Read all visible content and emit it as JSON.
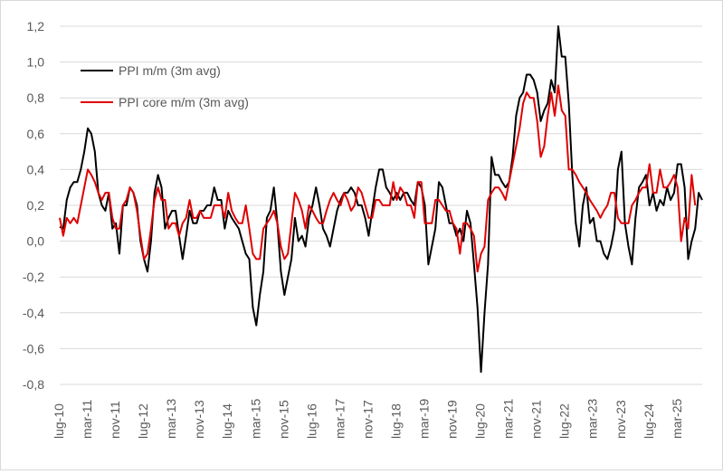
{
  "chart_data": {
    "type": "line",
    "ylim": [
      -0.8,
      1.2
    ],
    "yticks": [
      "-0,8",
      "-0,6",
      "-0,4",
      "-0,2",
      "0,0",
      "0,2",
      "0,4",
      "0,6",
      "0,8",
      "1,0",
      "1,2"
    ],
    "xticks": [
      "lug-10",
      "mar-11",
      "nov-11",
      "lug-12",
      "mar-13",
      "nov-13",
      "lug-14",
      "mar-15",
      "nov-15",
      "lug-16",
      "mar-17",
      "nov-17",
      "lug-18",
      "mar-19",
      "nov-19",
      "lug-20",
      "mar-21",
      "nov-21",
      "lug-22",
      "mar-23",
      "nov-23",
      "lug-24",
      "mar-25"
    ],
    "grid": "horizontal",
    "legend": "top-left",
    "series": [
      {
        "name": "PPI m/m (3m avg)",
        "color": "#000000",
        "values": [
          0.08,
          0.07,
          0.23,
          0.3,
          0.33,
          0.33,
          0.4,
          0.5,
          0.63,
          0.6,
          0.5,
          0.27,
          0.2,
          0.17,
          0.27,
          0.07,
          0.1,
          -0.07,
          0.2,
          0.2,
          0.3,
          0.27,
          0.2,
          0.0,
          -0.1,
          -0.17,
          0.0,
          0.27,
          0.37,
          0.3,
          0.07,
          0.13,
          0.17,
          0.17,
          0.03,
          -0.1,
          0.03,
          0.17,
          0.1,
          0.1,
          0.17,
          0.17,
          0.2,
          0.2,
          0.3,
          0.23,
          0.23,
          0.07,
          0.17,
          0.13,
          0.1,
          0.07,
          0.0,
          -0.07,
          -0.1,
          -0.37,
          -0.47,
          -0.3,
          -0.17,
          0.13,
          0.17,
          0.3,
          0.1,
          -0.17,
          -0.3,
          -0.2,
          -0.1,
          0.13,
          0.0,
          0.03,
          -0.03,
          0.13,
          0.2,
          0.3,
          0.2,
          0.07,
          0.03,
          -0.03,
          0.07,
          0.17,
          0.23,
          0.27,
          0.27,
          0.3,
          0.27,
          0.2,
          0.2,
          0.13,
          0.03,
          0.17,
          0.3,
          0.4,
          0.4,
          0.3,
          0.27,
          0.23,
          0.27,
          0.23,
          0.27,
          0.27,
          0.23,
          0.2,
          0.33,
          0.3,
          0.2,
          -0.13,
          -0.03,
          0.07,
          0.33,
          0.3,
          0.2,
          0.1,
          0.1,
          0.03,
          0.07,
          0.0,
          0.17,
          0.1,
          -0.13,
          -0.37,
          -0.73,
          -0.4,
          -0.13,
          0.47,
          0.37,
          0.37,
          0.33,
          0.3,
          0.33,
          0.47,
          0.7,
          0.8,
          0.83,
          0.93,
          0.93,
          0.9,
          0.83,
          0.67,
          0.73,
          0.77,
          0.9,
          0.83,
          1.2,
          1.03,
          1.03,
          0.77,
          0.37,
          0.1,
          -0.03,
          0.2,
          0.3,
          0.1,
          0.13,
          0.0,
          0.0,
          -0.07,
          -0.1,
          -0.03,
          0.07,
          0.4,
          0.5,
          0.1,
          -0.03,
          -0.13,
          0.13,
          0.3,
          0.33,
          0.37,
          0.2,
          0.27,
          0.17,
          0.23,
          0.2,
          0.3,
          0.23,
          0.27,
          0.43,
          0.43,
          0.3,
          -0.1,
          0.0,
          0.07,
          0.27,
          0.23
        ]
      },
      {
        "name": "PPI core m/m (3m avg)",
        "color": "#e00000",
        "values": [
          0.13,
          0.03,
          0.13,
          0.1,
          0.13,
          0.1,
          0.2,
          0.3,
          0.4,
          0.37,
          0.33,
          0.27,
          0.23,
          0.27,
          0.27,
          0.13,
          0.07,
          0.07,
          0.2,
          0.23,
          0.3,
          0.27,
          0.17,
          0.03,
          -0.1,
          -0.07,
          0.07,
          0.23,
          0.3,
          0.23,
          0.23,
          0.07,
          0.1,
          0.1,
          0.03,
          0.1,
          0.13,
          0.23,
          0.13,
          0.13,
          0.17,
          0.13,
          0.13,
          0.13,
          0.2,
          0.2,
          0.2,
          0.13,
          0.27,
          0.17,
          0.13,
          0.1,
          0.1,
          0.2,
          0.07,
          -0.07,
          -0.1,
          -0.1,
          0.07,
          0.1,
          0.13,
          0.17,
          0.1,
          -0.03,
          -0.1,
          -0.07,
          0.1,
          0.27,
          0.23,
          0.17,
          0.07,
          0.2,
          0.17,
          0.13,
          0.1,
          0.1,
          0.17,
          0.23,
          0.27,
          0.23,
          0.2,
          0.27,
          0.23,
          0.17,
          0.2,
          0.3,
          0.27,
          0.2,
          0.13,
          0.13,
          0.23,
          0.23,
          0.2,
          0.2,
          0.2,
          0.33,
          0.23,
          0.3,
          0.27,
          0.2,
          0.2,
          0.13,
          0.33,
          0.33,
          0.1,
          0.1,
          0.1,
          0.23,
          0.23,
          0.2,
          0.17,
          0.17,
          0.1,
          0.07,
          -0.07,
          0.1,
          0.1,
          0.07,
          0.03,
          -0.17,
          -0.07,
          -0.03,
          0.23,
          0.27,
          0.3,
          0.3,
          0.27,
          0.23,
          0.33,
          0.43,
          0.53,
          0.63,
          0.77,
          0.83,
          0.8,
          0.8,
          0.67,
          0.47,
          0.53,
          0.7,
          0.83,
          0.7,
          0.87,
          0.73,
          0.7,
          0.4,
          0.4,
          0.37,
          0.33,
          0.3,
          0.27,
          0.23,
          0.2,
          0.17,
          0.13,
          0.17,
          0.2,
          0.27,
          0.27,
          0.13,
          0.1,
          0.1,
          0.1,
          0.2,
          0.23,
          0.27,
          0.3,
          0.3,
          0.43,
          0.27,
          0.27,
          0.4,
          0.3,
          0.3,
          0.33,
          0.37,
          0.3,
          0.0,
          0.13,
          0.07,
          0.37,
          0.2
        ]
      }
    ]
  }
}
